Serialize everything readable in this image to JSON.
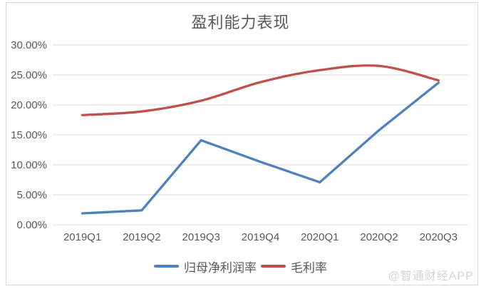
{
  "watermark": "@智通财经APP",
  "chart_data": {
    "type": "line",
    "title": "盈利能力表现",
    "categories": [
      "2019Q1",
      "2019Q2",
      "2019Q3",
      "2019Q4",
      "2020Q1",
      "2020Q2",
      "2020Q3"
    ],
    "series": [
      {
        "name": "归母净利润率",
        "color": "#4F81BD",
        "smooth": false,
        "values": [
          1.9,
          2.4,
          14.1,
          10.5,
          7.1,
          15.8,
          23.7
        ]
      },
      {
        "name": "毛利率",
        "color": "#C0504D",
        "smooth": true,
        "values": [
          18.3,
          18.9,
          20.7,
          23.8,
          25.8,
          26.5,
          24.1
        ]
      }
    ],
    "y_axis": {
      "min": 0,
      "max": 30,
      "step": 5,
      "tick_values": [
        30,
        25,
        20,
        15,
        10,
        5,
        0
      ],
      "tick_labels": [
        "30.00%",
        "25.00%",
        "20.00%",
        "15.00%",
        "10.00%",
        "5.00%",
        "0.00%"
      ]
    },
    "grid": true,
    "gridline_color": "#d9d9d9",
    "axis_text_color": "#595959",
    "legend_position": "bottom"
  }
}
